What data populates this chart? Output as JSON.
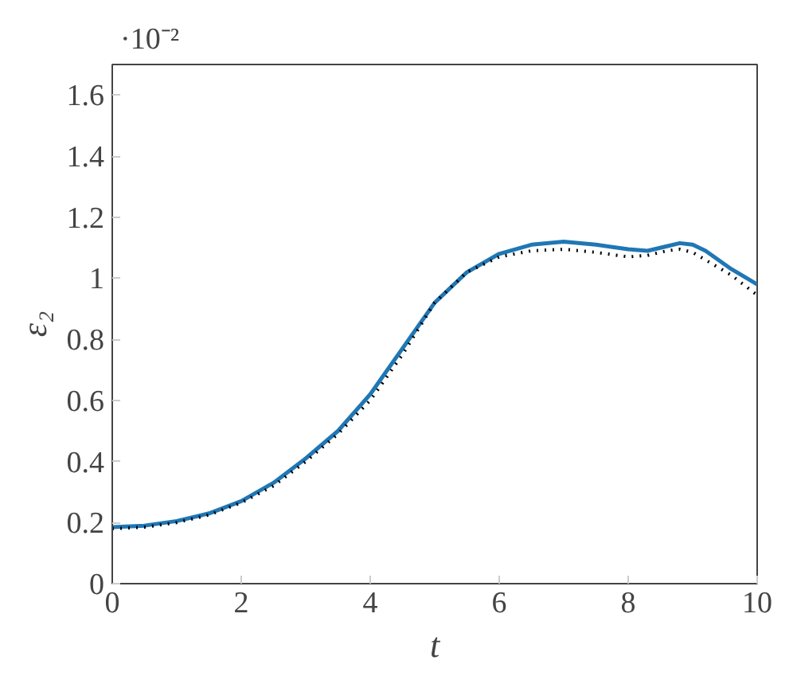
{
  "chart_data": {
    "type": "line",
    "xlabel": "t",
    "ylabel": "ε₂",
    "annotations": [
      "·10⁻²"
    ],
    "xlim": [
      0,
      10
    ],
    "ylim": [
      0,
      1.7
    ],
    "xticks": [
      0,
      2,
      4,
      6,
      8,
      10
    ],
    "yticks": [
      0,
      0.2,
      0.4,
      0.6,
      0.8,
      1,
      1.2,
      1.4,
      1.6
    ],
    "grid": false,
    "series": [
      {
        "color": "#1f77b4",
        "line_style": "solid",
        "x": [
          0,
          0.5,
          1,
          1.5,
          2,
          2.5,
          3,
          3.5,
          4,
          4.5,
          5,
          5.5,
          6,
          6.5,
          7,
          7.5,
          8,
          8.3,
          8.6,
          8.8,
          9,
          9.2,
          9.6,
          10
        ],
        "values": [
          0.185,
          0.19,
          0.205,
          0.23,
          0.27,
          0.33,
          0.41,
          0.5,
          0.62,
          0.77,
          0.92,
          1.02,
          1.08,
          1.11,
          1.12,
          1.11,
          1.095,
          1.09,
          1.105,
          1.115,
          1.11,
          1.09,
          1.03,
          0.98
        ]
      },
      {
        "color": "#000000",
        "line_style": "dotted",
        "x": [
          0,
          0.5,
          1,
          1.5,
          2,
          2.5,
          3,
          3.5,
          4,
          4.5,
          5,
          5.5,
          6,
          6.5,
          7,
          7.5,
          8,
          8.3,
          8.6,
          8.8,
          9,
          9.2,
          9.6,
          10
        ],
        "values": [
          0.18,
          0.185,
          0.2,
          0.225,
          0.265,
          0.32,
          0.4,
          0.49,
          0.6,
          0.75,
          0.92,
          1.02,
          1.07,
          1.09,
          1.095,
          1.085,
          1.07,
          1.075,
          1.09,
          1.095,
          1.085,
          1.06,
          1.01,
          0.945
        ]
      }
    ]
  }
}
